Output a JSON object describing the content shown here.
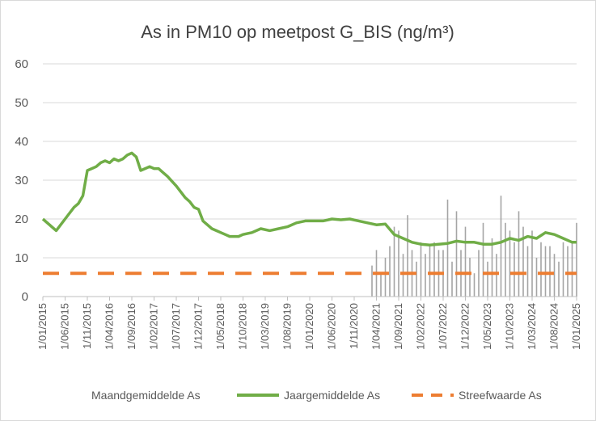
{
  "chart_data": {
    "type": "line",
    "title": "As in PM10 op meetpost G_BIS (ng/m³)",
    "xlabel": "",
    "ylabel": "",
    "ylim": [
      0,
      60
    ],
    "yticks": [
      "0",
      "10",
      "20",
      "30",
      "40",
      "50",
      "60"
    ],
    "grid": true,
    "legend_position": "bottom",
    "xticks": [
      "1/01/2015",
      "1/06/2015",
      "1/11/2015",
      "1/04/2016",
      "1/09/2016",
      "1/02/2017",
      "1/07/2017",
      "1/12/2017",
      "1/05/2018",
      "1/10/2018",
      "1/03/2019",
      "1/08/2019",
      "1/01/2020",
      "1/06/2020",
      "1/11/2020",
      "1/04/2021",
      "1/09/2021",
      "1/02/2022",
      "1/07/2022",
      "1/12/2022",
      "1/05/2023",
      "1/10/2023",
      "1/03/2024",
      "1/08/2024",
      "1/01/2025"
    ],
    "series": [
      {
        "name": "Maandgemiddelde As",
        "type": "bar",
        "color": "#a5a5a5",
        "x": [
          "2021-03",
          "2021-04",
          "2021-05",
          "2021-06",
          "2021-07",
          "2021-08",
          "2021-09",
          "2021-10",
          "2021-11",
          "2021-12",
          "2022-01",
          "2022-02",
          "2022-03",
          "2022-04",
          "2022-05",
          "2022-06",
          "2022-07",
          "2022-08",
          "2022-09",
          "2022-10",
          "2022-11",
          "2022-12",
          "2023-01",
          "2023-02",
          "2023-03",
          "2023-04",
          "2023-05",
          "2023-06",
          "2023-07",
          "2023-08",
          "2023-09",
          "2023-10",
          "2023-11",
          "2023-12",
          "2024-01",
          "2024-02",
          "2024-03",
          "2024-04",
          "2024-05",
          "2024-06",
          "2024-07",
          "2024-08",
          "2024-09",
          "2024-10",
          "2024-11",
          "2024-12",
          "2025-01"
        ],
        "values": [
          8,
          12,
          6,
          10,
          13,
          18,
          17,
          11,
          21,
          12,
          9,
          14,
          11,
          13,
          14,
          12,
          12,
          25,
          9,
          22,
          12,
          18,
          10,
          6,
          12,
          19,
          9,
          15,
          11,
          26,
          19,
          17,
          14,
          22,
          18,
          13,
          17,
          10,
          14,
          13,
          13,
          11,
          9,
          14,
          13,
          14,
          19
        ]
      },
      {
        "name": "Jaargemiddelde As",
        "type": "line",
        "color": "#70ad47",
        "x": [
          "2015-01",
          "2015-04",
          "2015-06",
          "2015-08",
          "2015-09",
          "2015-10",
          "2015-11",
          "2015-12",
          "2016-01",
          "2016-02",
          "2016-03",
          "2016-04",
          "2016-05",
          "2016-06",
          "2016-07",
          "2016-08",
          "2016-09",
          "2016-10",
          "2016-11",
          "2016-12",
          "2017-01",
          "2017-02",
          "2017-03",
          "2017-04",
          "2017-05",
          "2017-07",
          "2017-09",
          "2017-10",
          "2017-11",
          "2017-12",
          "2018-01",
          "2018-02",
          "2018-03",
          "2018-04",
          "2018-05",
          "2018-06",
          "2018-07",
          "2018-08",
          "2018-09",
          "2018-10",
          "2018-12",
          "2019-02",
          "2019-04",
          "2019-06",
          "2019-08",
          "2019-10",
          "2019-12",
          "2020-02",
          "2020-04",
          "2020-06",
          "2020-08",
          "2020-10",
          "2020-12",
          "2021-02",
          "2021-04",
          "2021-06",
          "2021-08",
          "2021-10",
          "2021-12",
          "2022-02",
          "2022-04",
          "2022-06",
          "2022-08",
          "2022-10",
          "2022-12",
          "2023-02",
          "2023-04",
          "2023-06",
          "2023-08",
          "2023-10",
          "2023-12",
          "2024-02",
          "2024-04",
          "2024-06",
          "2024-08",
          "2024-10",
          "2024-12",
          "2025-01"
        ],
        "values": [
          20,
          17,
          20,
          23,
          24,
          26,
          32.5,
          33,
          33.5,
          34.5,
          35,
          34.5,
          35.5,
          35,
          35.5,
          36.5,
          37,
          36,
          32.5,
          33,
          33.5,
          33,
          33,
          32,
          31,
          28.5,
          25.5,
          24.5,
          23,
          22.5,
          19.5,
          18.5,
          17.5,
          17,
          16.5,
          16,
          15.5,
          15.5,
          15.5,
          16,
          16.5,
          17.5,
          17,
          17.5,
          18,
          19,
          19.5,
          19.5,
          19.5,
          20,
          19.8,
          20,
          19.5,
          19,
          18.5,
          18.7,
          16,
          15,
          14,
          13.5,
          13.3,
          13.5,
          13.7,
          14.3,
          14,
          14,
          13.5,
          13.5,
          14,
          15,
          14.5,
          15.5,
          15,
          16.5,
          16,
          15,
          14,
          14
        ]
      },
      {
        "name": "Streefwaarde As",
        "type": "line",
        "dash": true,
        "color": "#ed7d31",
        "x": [
          "2015-01",
          "2025-01"
        ],
        "values": [
          6,
          6
        ]
      }
    ]
  }
}
